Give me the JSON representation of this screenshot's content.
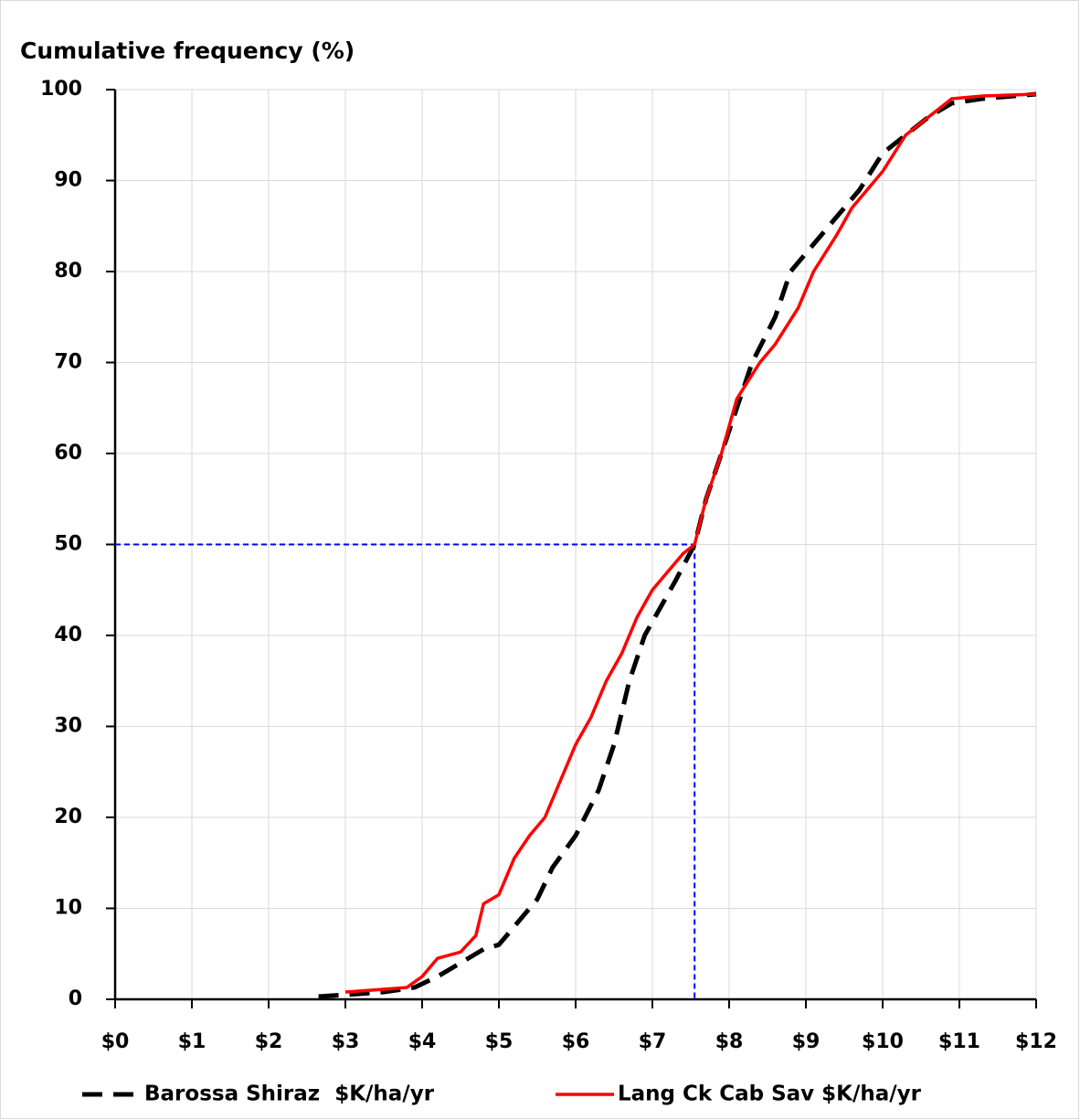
{
  "chart_data": {
    "type": "line",
    "title": "Cumulative frequency (%)",
    "xlim": [
      0,
      12
    ],
    "xticks": [
      {
        "value": 0,
        "label": "$0"
      },
      {
        "value": 1,
        "label": "$1"
      },
      {
        "value": 2,
        "label": "$2"
      },
      {
        "value": 3,
        "label": "$3"
      },
      {
        "value": 4,
        "label": "$4"
      },
      {
        "value": 5,
        "label": "$5"
      },
      {
        "value": 6,
        "label": "$6"
      },
      {
        "value": 7,
        "label": "$7"
      },
      {
        "value": 8,
        "label": "$8"
      },
      {
        "value": 9,
        "label": "$9"
      },
      {
        "value": 10,
        "label": "$10"
      },
      {
        "value": 11,
        "label": "$11"
      },
      {
        "value": 12,
        "label": "$12"
      }
    ],
    "ylim": [
      0,
      100
    ],
    "yticks": [
      0,
      10,
      20,
      30,
      40,
      50,
      60,
      70,
      80,
      90,
      100
    ],
    "grid": true,
    "legend": "bottom",
    "reference_lines": {
      "x": 7.55,
      "y": 50,
      "color": "#0000ff"
    },
    "series": [
      {
        "name": "Barossa Shiraz  $K/ha/yr",
        "color": "#000000",
        "dashed": true,
        "x": [
          2.65,
          3.0,
          3.5,
          3.9,
          4.2,
          4.5,
          4.8,
          5.0,
          5.3,
          5.5,
          5.7,
          6.0,
          6.3,
          6.5,
          6.7,
          6.9,
          7.1,
          7.3,
          7.55,
          7.7,
          7.9,
          8.1,
          8.3,
          8.6,
          8.8,
          9.1,
          9.4,
          9.7,
          10.0,
          10.3,
          10.6,
          10.9,
          11.3,
          12.0
        ],
        "values": [
          0.3,
          0.5,
          0.8,
          1.3,
          2.5,
          4,
          5.5,
          6,
          9,
          11,
          14.5,
          18,
          23,
          28,
          35,
          40,
          43,
          46,
          50,
          55,
          60,
          65,
          70,
          75,
          80,
          83,
          86,
          89,
          93,
          95,
          97,
          98.5,
          99,
          99.5
        ]
      },
      {
        "name": "Lang Ck Cab Sav $K/ha/yr",
        "color": "#ff0000",
        "dashed": false,
        "x": [
          3.0,
          3.5,
          3.8,
          4.0,
          4.2,
          4.5,
          4.7,
          4.8,
          5.0,
          5.2,
          5.4,
          5.6,
          5.8,
          6.0,
          6.2,
          6.4,
          6.6,
          6.8,
          7.0,
          7.2,
          7.4,
          7.55,
          7.7,
          7.9,
          8.1,
          8.4,
          8.6,
          8.9,
          9.1,
          9.4,
          9.6,
          9.8,
          10.0,
          10.3,
          10.6,
          10.9,
          11.3,
          12.0
        ],
        "values": [
          0.8,
          1.1,
          1.3,
          2.5,
          4.5,
          5.2,
          7,
          10.5,
          11.5,
          15.5,
          18,
          20,
          24,
          28,
          31,
          35,
          38,
          42,
          45,
          47,
          49,
          50,
          55,
          60,
          66,
          70,
          72,
          76,
          80,
          84,
          87,
          89,
          91,
          95,
          97,
          99,
          99.3,
          99.5
        ]
      }
    ]
  }
}
